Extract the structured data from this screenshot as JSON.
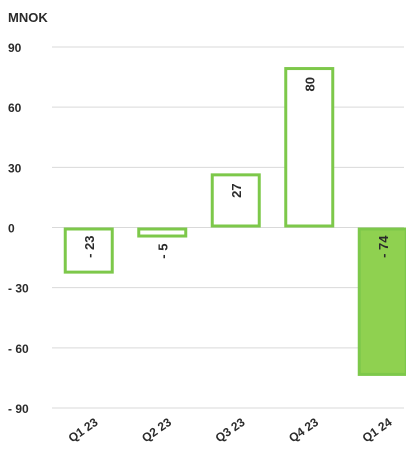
{
  "chart_data": {
    "type": "bar",
    "unit_label": "MNOK",
    "categories": [
      "Q1 23",
      "Q2 23",
      "Q3 23",
      "Q4 23",
      "Q1 24"
    ],
    "values": [
      -23,
      -5,
      27,
      80,
      -74
    ],
    "data_labels": [
      "- 23",
      "- 5",
      "27",
      "80",
      "- 74"
    ],
    "highlighted_index": 4,
    "ylim": [
      -90,
      90
    ],
    "yticks": [
      90,
      60,
      30,
      0,
      -30,
      -60,
      -90
    ],
    "ytick_labels": [
      "90",
      "60",
      "30",
      "0",
      "- 30",
      "- 60",
      "- 90"
    ],
    "grid": true,
    "colors": {
      "bar_outline": "#7dc84a",
      "bar_fill_highlight": "#8fd150",
      "bar_fill": "#ffffff",
      "grid": "#d9d9d9",
      "text": "#2b2b2b"
    }
  }
}
